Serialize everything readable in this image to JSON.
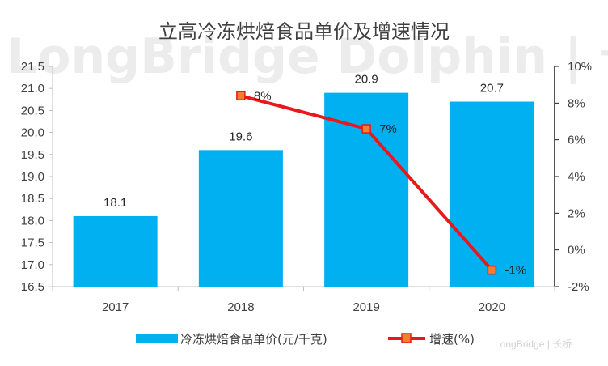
{
  "watermark": {
    "text": "LongBridge Dolphin | 长桥海豚投研",
    "badge": "LongBridge | 长桥"
  },
  "chart_data": {
    "type": "bar",
    "title": "立高冷冻烘焙食品单价及增速情况",
    "categories": [
      "2017",
      "2018",
      "2019",
      "2020"
    ],
    "series": [
      {
        "name": "冷冻烘焙食品单价(元/千克)",
        "type": "bar",
        "axis": "left",
        "values": [
          18.1,
          19.6,
          20.9,
          20.7
        ],
        "labels": [
          "18.1",
          "19.6",
          "20.9",
          "20.7"
        ],
        "color": "#00B0F0"
      },
      {
        "name": "增速(%)",
        "type": "line",
        "axis": "right",
        "values": [
          null,
          8.4,
          6.6,
          -1.1
        ],
        "labels": [
          "",
          "8%",
          "7%",
          "-1%"
        ],
        "color": "#E8191A",
        "marker_color": "#F08030"
      }
    ],
    "y_left": {
      "min": 16.5,
      "max": 21.5,
      "ticks": [
        "16.5",
        "17.0",
        "17.5",
        "18.0",
        "18.5",
        "19.0",
        "19.5",
        "20.0",
        "20.5",
        "21.0",
        "21.5"
      ]
    },
    "y_right": {
      "min": -2,
      "max": 10,
      "ticks": [
        "-2%",
        "0%",
        "2%",
        "4%",
        "6%",
        "8%",
        "10%"
      ]
    },
    "grid": false,
    "legend_position": "bottom"
  }
}
